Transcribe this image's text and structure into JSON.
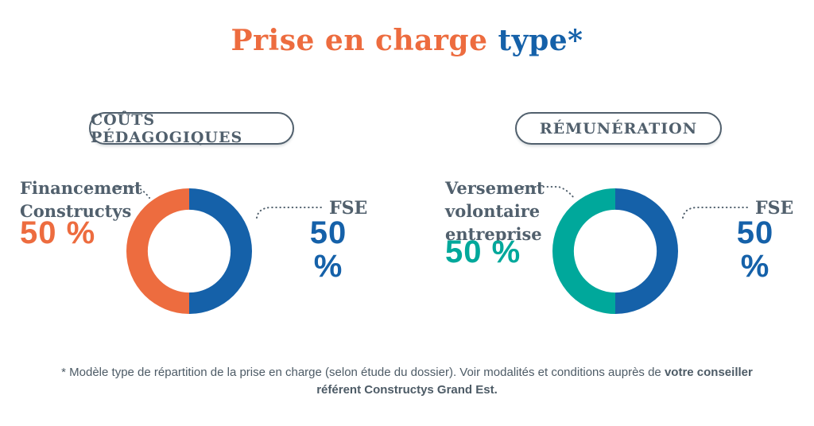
{
  "colors": {
    "orange": "#ED6C3F",
    "blue": "#1561A9",
    "teal": "#00A89B",
    "slate": "#51606D",
    "footer_text": "#4D5B66",
    "background": "#FFFFFF"
  },
  "title": {
    "part_orange": "Prise en charge",
    "part_blue": "type*"
  },
  "panels": [
    {
      "badge_label": "COÛTS PÉDAGOGIQUES",
      "left_label": "Financement\nConstructys",
      "left_value": "50 %",
      "right_label": "FSE",
      "right_value": "50 %"
    },
    {
      "badge_label": "RÉMUNÉRATION",
      "left_label": "Versement\nvolontaire\nentreprise",
      "left_value": "50 %",
      "right_label": "FSE",
      "right_value": "50 %"
    }
  ],
  "footnote": {
    "regular": "* Modèle type de répartition de la prise en charge (selon étude du dossier). Voir modalités et conditions auprès de ",
    "bold": "votre conseiller référent Constructys Grand Est."
  },
  "chart_data": [
    {
      "type": "pie",
      "title": "COÛTS PÉDAGOGIQUES",
      "labels": [
        "Financement Constructys",
        "FSE"
      ],
      "values": [
        50,
        50
      ],
      "value_labels": [
        "50 %",
        "50 %"
      ],
      "colors": [
        "#ED6C3F",
        "#1561A9"
      ],
      "donut_hole": 0.66,
      "start_angle_deg": 180,
      "direction": "clockwise",
      "legend_position": "sides"
    },
    {
      "type": "pie",
      "title": "RÉMUNÉRATION",
      "labels": [
        "Versement volontaire entreprise",
        "FSE"
      ],
      "values": [
        50,
        50
      ],
      "value_labels": [
        "50 %",
        "50 %"
      ],
      "colors": [
        "#00A89B",
        "#1561A9"
      ],
      "donut_hole": 0.66,
      "start_angle_deg": 180,
      "direction": "clockwise",
      "legend_position": "sides"
    }
  ]
}
